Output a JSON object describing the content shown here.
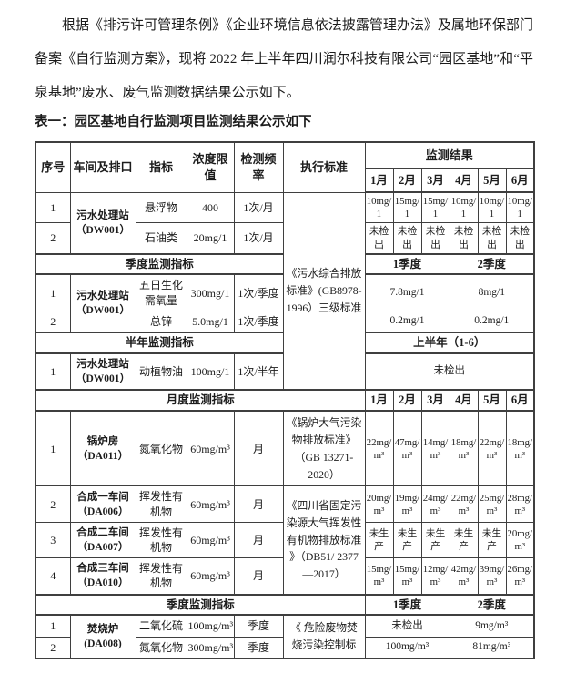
{
  "colors": {
    "text": "#1c1c1c",
    "border": "#3f3f3f",
    "page_background": "#ffffff"
  },
  "page": {
    "intro_paragraph": "根据《排污许可管理条例》《企业环境信息依法披露管理办法》及属地环保部门备案《自行监测方案》，现将 2022 年上半年四川润尔科技有限公司“园区基地”和“平泉基地”废水、废气监测数据结果公示如下。",
    "table_caption": "表一：园区基地自行监测项目监测结果公示如下"
  },
  "table": {
    "rows": [
      {
        "cls": "hdr-row",
        "cells": [
          {
            "t": "序号",
            "rs": 2,
            "cls": "hdr",
            "n": "header-cell-seq"
          },
          {
            "t": "车间及排口",
            "rs": 2,
            "cls": "hdr",
            "n": "header-cell-workshop"
          },
          {
            "t": "指标",
            "rs": 2,
            "cls": "hdr",
            "n": "header-cell-indicator"
          },
          {
            "t": "浓度限值",
            "rs": 2,
            "cls": "hdr",
            "n": "header-cell-limit"
          },
          {
            "t": "检测频率",
            "rs": 2,
            "cls": "hdr",
            "n": "header-cell-frequency"
          },
          {
            "t": "执行标准",
            "rs": 2,
            "cls": "hdr",
            "n": "header-cell-standard"
          },
          {
            "t": "监测结果",
            "cs": 6,
            "cls": "hdr",
            "n": "header-cell-results"
          }
        ]
      },
      {
        "cls": "months",
        "cells": [
          {
            "t": "1月",
            "cls": "hdr mon",
            "n": "month-header"
          },
          {
            "t": "2月",
            "cls": "hdr mon",
            "n": "month-header"
          },
          {
            "t": "3月",
            "cls": "hdr mon",
            "n": "month-header"
          },
          {
            "t": "4月",
            "cls": "hdr mon",
            "n": "month-header"
          },
          {
            "t": "5月",
            "cls": "hdr mon",
            "n": "month-header"
          },
          {
            "t": "6月",
            "cls": "hdr mon",
            "n": "month-header"
          }
        ]
      },
      {
        "cells": [
          {
            "t": "1",
            "n": "row-index"
          },
          {
            "t": "污水处理站（DW001）",
            "rs": 2,
            "cls": "shop",
            "n": "workshop-outlet"
          },
          {
            "t": "悬浮物",
            "n": "indicator"
          },
          {
            "t": "400",
            "n": "limit"
          },
          {
            "t": "1次/月",
            "n": "frequency"
          },
          {
            "t": "《污水综合排放标准》(GB8978-1996）三级标准",
            "rs": 7,
            "cls": "std",
            "n": "standard"
          },
          {
            "t": "10mg/1",
            "cls": "num",
            "n": "result"
          },
          {
            "t": "15mg/1",
            "cls": "num",
            "n": "result"
          },
          {
            "t": "15mg/1",
            "cls": "num",
            "n": "result"
          },
          {
            "t": "10mg/1",
            "cls": "num",
            "n": "result"
          },
          {
            "t": "10mg/1",
            "cls": "num",
            "n": "result"
          },
          {
            "t": "10mg/1",
            "cls": "num",
            "n": "result"
          }
        ]
      },
      {
        "cells": [
          {
            "t": "2",
            "n": "row-index"
          },
          {
            "t": "石油类",
            "n": "indicator"
          },
          {
            "t": "20mg/1",
            "n": "limit"
          },
          {
            "t": "1次/月",
            "n": "frequency"
          },
          {
            "t": "未检出",
            "cls": "num",
            "n": "result"
          },
          {
            "t": "未检出",
            "cls": "num",
            "n": "result"
          },
          {
            "t": "未检出",
            "cls": "num",
            "n": "result"
          },
          {
            "t": "未检出",
            "cls": "num",
            "n": "result"
          },
          {
            "t": "未检出",
            "cls": "num",
            "n": "result"
          },
          {
            "t": "未检出",
            "cls": "num",
            "n": "result"
          }
        ]
      },
      {
        "cells": [
          {
            "t": "季度监测指标",
            "cs": 5,
            "cls": "band",
            "n": "section-band"
          },
          {
            "t": "1季度",
            "cs": 3,
            "cls": "band",
            "n": "quarter-header"
          },
          {
            "t": "2季度",
            "cs": 3,
            "cls": "band",
            "n": "quarter-header"
          }
        ]
      },
      {
        "cells": [
          {
            "t": "1",
            "n": "row-index"
          },
          {
            "t": "污水处理站（DW001）",
            "rs": 2,
            "cls": "shop",
            "n": "workshop-outlet"
          },
          {
            "t": "五日生化需氧量",
            "n": "indicator"
          },
          {
            "t": "300mg/1",
            "n": "limit"
          },
          {
            "t": "1次/季度",
            "n": "frequency"
          },
          {
            "t": "7.8mg/1",
            "cs": 3,
            "cls": "qval",
            "n": "result"
          },
          {
            "t": "8mg/1",
            "cs": 3,
            "cls": "qval",
            "n": "result"
          }
        ]
      },
      {
        "cells": [
          {
            "t": "2",
            "n": "row-index"
          },
          {
            "t": "总锌",
            "n": "indicator"
          },
          {
            "t": "5.0mg/1",
            "n": "limit"
          },
          {
            "t": "1次/季度",
            "n": "frequency"
          },
          {
            "t": "0.2mg/1",
            "cs": 3,
            "cls": "qval",
            "n": "result"
          },
          {
            "t": "0.2mg/1",
            "cs": 3,
            "cls": "qval",
            "n": "result"
          }
        ]
      },
      {
        "cells": [
          {
            "t": "半年监测指标",
            "cs": 5,
            "cls": "band",
            "n": "section-band"
          },
          {
            "t": "上半年（1-6）",
            "cs": 6,
            "cls": "band",
            "n": "half-year-header"
          }
        ]
      },
      {
        "cells": [
          {
            "t": "1",
            "n": "row-index"
          },
          {
            "t": "污水处理站（DW001）",
            "cls": "shop",
            "n": "workshop-outlet"
          },
          {
            "t": "动植物油",
            "n": "indicator"
          },
          {
            "t": "100mg/1",
            "n": "limit"
          },
          {
            "t": "1次/半年",
            "n": "frequency"
          },
          {
            "t": "未检出",
            "cs": 6,
            "cls": "qval",
            "n": "result"
          }
        ]
      },
      {
        "cells": [
          {
            "t": "月度监测指标",
            "cs": 6,
            "cls": "band",
            "n": "section-band"
          },
          {
            "t": "1月",
            "cls": "band mon",
            "n": "month-header"
          },
          {
            "t": "2月",
            "cls": "band mon",
            "n": "month-header"
          },
          {
            "t": "3月",
            "cls": "band mon",
            "n": "month-header"
          },
          {
            "t": "4月",
            "cls": "band mon",
            "n": "month-header"
          },
          {
            "t": "5月",
            "cls": "band mon",
            "n": "month-header"
          },
          {
            "t": "6月",
            "cls": "band mon",
            "n": "month-header"
          }
        ]
      },
      {
        "cells": [
          {
            "t": "1",
            "n": "row-index"
          },
          {
            "t": "锅炉房（DA011）",
            "cls": "shop",
            "n": "workshop-outlet"
          },
          {
            "t": "氮氧化物",
            "n": "indicator"
          },
          {
            "t": "60mg/m³",
            "n": "limit"
          },
          {
            "t": "月",
            "n": "frequency"
          },
          {
            "t": "《锅炉大气污染物排放标准》（GB 13271-2020）",
            "cls": "std",
            "n": "standard"
          },
          {
            "t": "22mg/m³",
            "cls": "num",
            "n": "result"
          },
          {
            "t": "47mg/m³",
            "cls": "num",
            "n": "result"
          },
          {
            "t": "14mg/m³",
            "cls": "num",
            "n": "result"
          },
          {
            "t": "18mg/m³",
            "cls": "num",
            "n": "result"
          },
          {
            "t": "22mg/m³",
            "cls": "num",
            "n": "result"
          },
          {
            "t": "18mg/m³",
            "cls": "num",
            "n": "result"
          }
        ]
      },
      {
        "cells": [
          {
            "t": "2",
            "n": "row-index"
          },
          {
            "t": "合成一车间（DA006）",
            "cls": "shop",
            "n": "workshop-outlet"
          },
          {
            "t": "挥发性有机物",
            "n": "indicator"
          },
          {
            "t": "60mg/m³",
            "n": "limit"
          },
          {
            "t": "月",
            "n": "frequency"
          },
          {
            "t": "《四川省固定污染源大气挥发性有机物排放标准 》（DB51/ 2377—2017）",
            "rs": 3,
            "cls": "std",
            "n": "standard"
          },
          {
            "t": "20mg/m³",
            "cls": "num",
            "n": "result"
          },
          {
            "t": "19mg/m³",
            "cls": "num",
            "n": "result"
          },
          {
            "t": "24mg/m³",
            "cls": "num",
            "n": "result"
          },
          {
            "t": "22mg/m³",
            "cls": "num",
            "n": "result"
          },
          {
            "t": "25mg/m³",
            "cls": "num",
            "n": "result"
          },
          {
            "t": "28mg/m³",
            "cls": "num",
            "n": "result"
          }
        ]
      },
      {
        "cells": [
          {
            "t": "3",
            "n": "row-index"
          },
          {
            "t": "合成二车间（DA007）",
            "cls": "shop",
            "n": "workshop-outlet"
          },
          {
            "t": "挥发性有机物",
            "n": "indicator"
          },
          {
            "t": "60mg/m³",
            "n": "limit"
          },
          {
            "t": "月",
            "n": "frequency"
          },
          {
            "t": "未生产",
            "cls": "num",
            "n": "result"
          },
          {
            "t": "未生产",
            "cls": "num",
            "n": "result"
          },
          {
            "t": "未生产",
            "cls": "num",
            "n": "result"
          },
          {
            "t": "未生产",
            "cls": "num",
            "n": "result"
          },
          {
            "t": "未生产",
            "cls": "num",
            "n": "result"
          },
          {
            "t": "20mg/m³",
            "cls": "num",
            "n": "result"
          }
        ]
      },
      {
        "cells": [
          {
            "t": "4",
            "n": "row-index"
          },
          {
            "t": "合成三车间（DA010）",
            "cls": "shop",
            "n": "workshop-outlet"
          },
          {
            "t": "挥发性有机物",
            "n": "indicator"
          },
          {
            "t": "60mg/m³",
            "n": "limit"
          },
          {
            "t": "月",
            "n": "frequency"
          },
          {
            "t": "15mg/m³",
            "cls": "num",
            "n": "result"
          },
          {
            "t": "15mg/m³",
            "cls": "num",
            "n": "result"
          },
          {
            "t": "12mg/m³",
            "cls": "num",
            "n": "result"
          },
          {
            "t": "42mg/m³",
            "cls": "num",
            "n": "result"
          },
          {
            "t": "39mg/m³",
            "cls": "num",
            "n": "result"
          },
          {
            "t": "26mg/m³",
            "cls": "num",
            "n": "result"
          }
        ]
      },
      {
        "cells": [
          {
            "t": "季度监测指标",
            "cs": 6,
            "cls": "band",
            "n": "section-band"
          },
          {
            "t": "1季度",
            "cs": 3,
            "cls": "band",
            "n": "quarter-header"
          },
          {
            "t": "2季度",
            "cs": 3,
            "cls": "band",
            "n": "quarter-header"
          }
        ]
      },
      {
        "cells": [
          {
            "t": "1",
            "n": "row-index"
          },
          {
            "t": "焚烧炉(DA008)",
            "rs": 2,
            "cls": "shop",
            "n": "workshop-outlet"
          },
          {
            "t": "二氧化硫",
            "n": "indicator"
          },
          {
            "t": "100mg/m³",
            "n": "limit"
          },
          {
            "t": "季度",
            "n": "frequency"
          },
          {
            "t": "《 危险废物焚烧污染控制标",
            "rs": 2,
            "cls": "std",
            "n": "standard"
          },
          {
            "t": "未检出",
            "cs": 3,
            "cls": "qval",
            "n": "result"
          },
          {
            "t": "9mg/m³",
            "cs": 3,
            "cls": "qval",
            "n": "result"
          }
        ]
      },
      {
        "cells": [
          {
            "t": "2",
            "n": "row-index"
          },
          {
            "t": "氮氧化物",
            "n": "indicator"
          },
          {
            "t": "300mg/m³",
            "n": "limit"
          },
          {
            "t": "季度",
            "n": "frequency"
          },
          {
            "t": "100mg/m³",
            "cs": 3,
            "cls": "qval",
            "n": "result"
          },
          {
            "t": "81mg/m³",
            "cs": 3,
            "cls": "qval",
            "n": "result"
          }
        ]
      }
    ]
  }
}
